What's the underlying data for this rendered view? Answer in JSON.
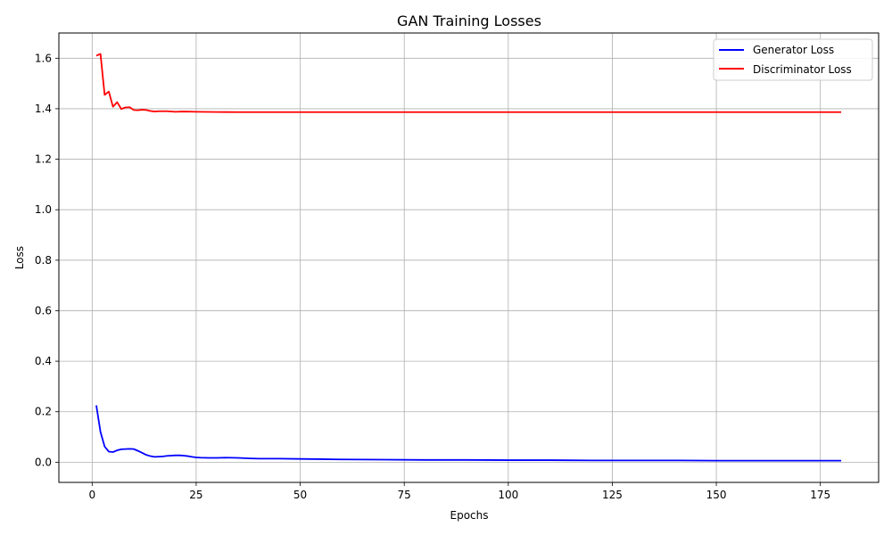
{
  "chart_data": {
    "type": "line",
    "title": "GAN Training Losses",
    "xlabel": "Epochs",
    "ylabel": "Loss",
    "xlim": [
      -8,
      189
    ],
    "ylim": [
      -0.08,
      1.7
    ],
    "x_ticks": [
      0,
      25,
      50,
      75,
      100,
      125,
      150,
      175
    ],
    "y_ticks": [
      0.0,
      0.2,
      0.4,
      0.6,
      0.8,
      1.0,
      1.2,
      1.4,
      1.6
    ],
    "y_tick_labels": [
      "0.0",
      "0.2",
      "0.4",
      "0.6",
      "0.8",
      "1.0",
      "1.2",
      "1.4",
      "1.6"
    ],
    "grid": true,
    "legend_position": "top-right",
    "series": [
      {
        "name": "Generator Loss",
        "color": "#0000ff",
        "points": [
          [
            1,
            0.225
          ],
          [
            2,
            0.12
          ],
          [
            3,
            0.062
          ],
          [
            4,
            0.042
          ],
          [
            5,
            0.04
          ],
          [
            6,
            0.047
          ],
          [
            7,
            0.051
          ],
          [
            8,
            0.052
          ],
          [
            9,
            0.053
          ],
          [
            10,
            0.052
          ],
          [
            11,
            0.045
          ],
          [
            12,
            0.037
          ],
          [
            13,
            0.029
          ],
          [
            14,
            0.024
          ],
          [
            15,
            0.021
          ],
          [
            16,
            0.022
          ],
          [
            17,
            0.023
          ],
          [
            18,
            0.025
          ],
          [
            19,
            0.026
          ],
          [
            20,
            0.027
          ],
          [
            21,
            0.027
          ],
          [
            22,
            0.026
          ],
          [
            23,
            0.024
          ],
          [
            24,
            0.021
          ],
          [
            25,
            0.019
          ],
          [
            26,
            0.018
          ],
          [
            28,
            0.017
          ],
          [
            30,
            0.017
          ],
          [
            32,
            0.018
          ],
          [
            35,
            0.017
          ],
          [
            38,
            0.015
          ],
          [
            40,
            0.014
          ],
          [
            45,
            0.014
          ],
          [
            50,
            0.013
          ],
          [
            55,
            0.012
          ],
          [
            60,
            0.011
          ],
          [
            70,
            0.01
          ],
          [
            80,
            0.009
          ],
          [
            90,
            0.009
          ],
          [
            100,
            0.008
          ],
          [
            110,
            0.008
          ],
          [
            120,
            0.007
          ],
          [
            130,
            0.007
          ],
          [
            140,
            0.007
          ],
          [
            150,
            0.006
          ],
          [
            160,
            0.006
          ],
          [
            170,
            0.006
          ],
          [
            180,
            0.006
          ]
        ]
      },
      {
        "name": "Discriminator Loss",
        "color": "#ff0000",
        "points": [
          [
            1,
            1.61
          ],
          [
            2,
            1.617
          ],
          [
            3,
            1.455
          ],
          [
            4,
            1.468
          ],
          [
            5,
            1.408
          ],
          [
            6,
            1.426
          ],
          [
            7,
            1.399
          ],
          [
            8,
            1.405
          ],
          [
            9,
            1.406
          ],
          [
            10,
            1.395
          ],
          [
            11,
            1.394
          ],
          [
            12,
            1.396
          ],
          [
            13,
            1.395
          ],
          [
            14,
            1.391
          ],
          [
            15,
            1.389
          ],
          [
            16,
            1.39
          ],
          [
            18,
            1.39
          ],
          [
            20,
            1.388
          ],
          [
            22,
            1.389
          ],
          [
            25,
            1.388
          ],
          [
            30,
            1.387
          ],
          [
            35,
            1.3865
          ],
          [
            40,
            1.3865
          ],
          [
            60,
            1.3865
          ],
          [
            80,
            1.3865
          ],
          [
            100,
            1.3865
          ],
          [
            120,
            1.3865
          ],
          [
            140,
            1.3865
          ],
          [
            160,
            1.3865
          ],
          [
            180,
            1.3865
          ]
        ]
      }
    ]
  }
}
